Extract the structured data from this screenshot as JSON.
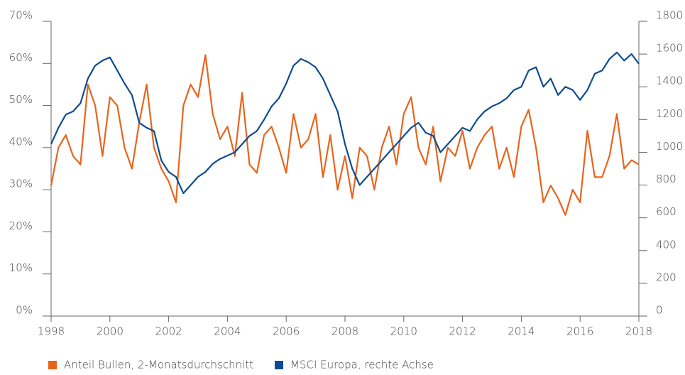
{
  "chart_data": {
    "type": "line",
    "x": [
      1998.0,
      1998.25,
      1998.5,
      1998.75,
      1999.0,
      1999.25,
      1999.5,
      1999.75,
      2000.0,
      2000.25,
      2000.5,
      2000.75,
      2001.0,
      2001.25,
      2001.5,
      2001.75,
      2002.0,
      2002.25,
      2002.5,
      2002.75,
      2003.0,
      2003.25,
      2003.5,
      2003.75,
      2004.0,
      2004.25,
      2004.5,
      2004.75,
      2005.0,
      2005.25,
      2005.5,
      2005.75,
      2006.0,
      2006.25,
      2006.5,
      2006.75,
      2007.0,
      2007.25,
      2007.5,
      2007.75,
      2008.0,
      2008.25,
      2008.5,
      2008.75,
      2009.0,
      2009.25,
      2009.5,
      2009.75,
      2010.0,
      2010.25,
      2010.5,
      2010.75,
      2011.0,
      2011.25,
      2011.5,
      2011.75,
      2012.0,
      2012.25,
      2012.5,
      2012.75,
      2013.0,
      2013.25,
      2013.5,
      2013.75,
      2014.0,
      2014.25,
      2014.5,
      2014.75,
      2015.0,
      2015.25,
      2015.5,
      2015.75,
      2016.0,
      2016.25,
      2016.5,
      2016.75,
      2017.0,
      2017.25,
      2017.5,
      2017.75,
      2018.0
    ],
    "series": [
      {
        "name": "Anteil Bullen, 2-Monatsdurchschnitt",
        "color": "#e8641b",
        "values": [
          31,
          40,
          43,
          38,
          36,
          55,
          50,
          38,
          52,
          50,
          40,
          35,
          46,
          55,
          40,
          35,
          32,
          27,
          50,
          55,
          52,
          62,
          48,
          42,
          45,
          38,
          53,
          36,
          34,
          43,
          45,
          40,
          34,
          48,
          40,
          42,
          48,
          33,
          43,
          30,
          38,
          28,
          40,
          38,
          30,
          40,
          45,
          36,
          48,
          52,
          40,
          36,
          45,
          32,
          40,
          38,
          44,
          35,
          40,
          43,
          45,
          35,
          40,
          33,
          45,
          49,
          40,
          27,
          31,
          28,
          24,
          30,
          27,
          44,
          33,
          33,
          38,
          48,
          35,
          37,
          36
        ]
      },
      {
        "name": "MSCI Europa, rechte Achse",
        "color": "#0d4c92",
        "axis": "y2",
        "values": [
          1050,
          1150,
          1230,
          1250,
          1300,
          1450,
          1530,
          1560,
          1580,
          1500,
          1420,
          1350,
          1180,
          1150,
          1130,
          950,
          880,
          850,
          750,
          800,
          850,
          880,
          930,
          960,
          980,
          1000,
          1050,
          1100,
          1130,
          1200,
          1280,
          1330,
          1420,
          1530,
          1570,
          1550,
          1520,
          1450,
          1350,
          1250,
          1050,
          900,
          800,
          850,
          900,
          950,
          1000,
          1050,
          1100,
          1150,
          1180,
          1120,
          1100,
          1000,
          1050,
          1100,
          1150,
          1130,
          1200,
          1250,
          1280,
          1300,
          1330,
          1380,
          1400,
          1500,
          1520,
          1400,
          1450,
          1350,
          1400,
          1380,
          1320,
          1380,
          1480,
          1500,
          1570,
          1610,
          1560,
          1600,
          1540
        ]
      }
    ],
    "xlim": [
      1998,
      2018
    ],
    "xticks": [
      1998,
      2000,
      2002,
      2004,
      2006,
      2008,
      2010,
      2012,
      2014,
      2016,
      2018
    ],
    "ylim": [
      0,
      70
    ],
    "yticks": [
      {
        "value": 0,
        "label": "0%"
      },
      {
        "value": 10,
        "label": "10%"
      },
      {
        "value": 20,
        "label": "20%"
      },
      {
        "value": 30,
        "label": "30%"
      },
      {
        "value": 40,
        "label": "40%"
      },
      {
        "value": 50,
        "label": "50%"
      },
      {
        "value": 60,
        "label": "60%"
      },
      {
        "value": 70,
        "label": "70%"
      }
    ],
    "y2lim": [
      0,
      1800
    ],
    "y2ticks": [
      0,
      200,
      400,
      600,
      800,
      1000,
      1200,
      1400,
      1600,
      1800
    ]
  }
}
